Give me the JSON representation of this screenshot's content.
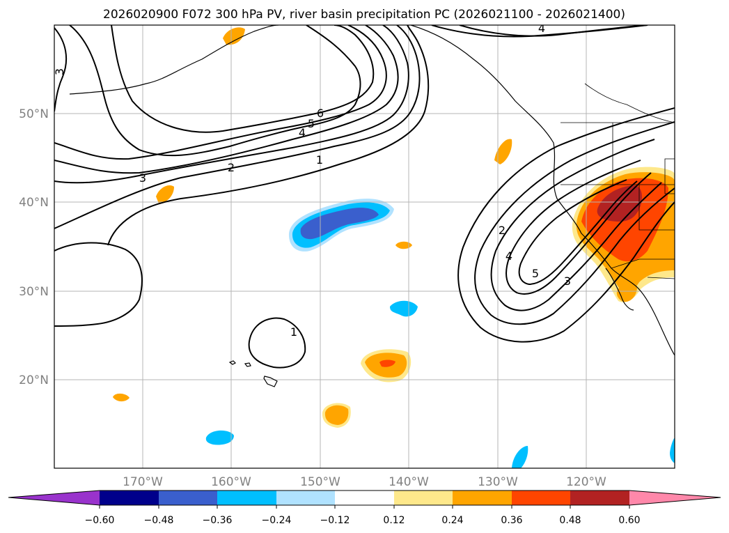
{
  "title": "2026020900 F072 300 hPa PV, river basin precipitation PC (2026021100 - 2026021400)",
  "map": {
    "lat_labels": [
      "50°N",
      "40°N",
      "30°N",
      "20°N"
    ],
    "lon_labels": [
      "170°W",
      "160°W",
      "150°W",
      "140°W",
      "130°W",
      "120°W"
    ],
    "contour_labels": [
      "4",
      "3",
      "6",
      "5",
      "4",
      "1",
      "2",
      "3",
      "2",
      "4",
      "5",
      "3",
      "1"
    ]
  },
  "colorbar": {
    "tick_labels": [
      "−0.60",
      "−0.48",
      "−0.36",
      "−0.24",
      "−0.12",
      "0.12",
      "0.24",
      "0.36",
      "0.48",
      "0.60"
    ],
    "colors": [
      "#9933cc",
      "#00008b",
      "#3a5fcd",
      "#00bfff",
      "#b0e2ff",
      "#ffffff",
      "#fee88b",
      "#ffa500",
      "#ff4500",
      "#b22222",
      "#ff88aa"
    ]
  }
}
